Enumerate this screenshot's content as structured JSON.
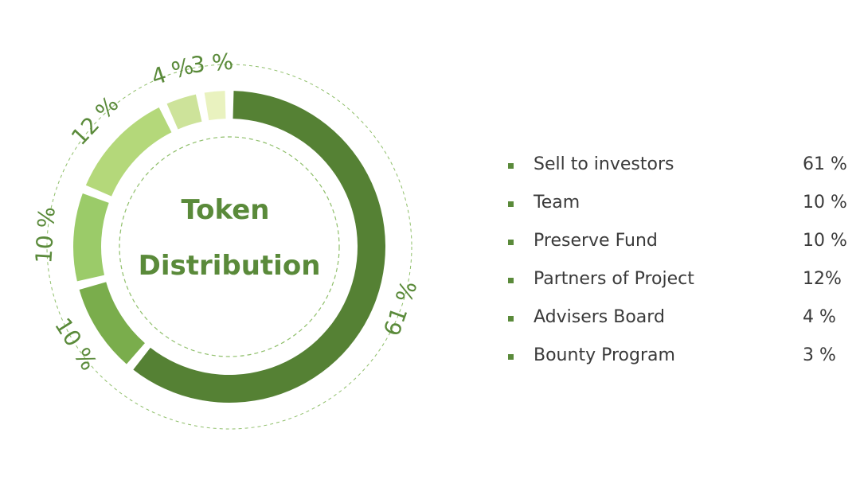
{
  "chart_data": {
    "type": "pie",
    "center_title_lines": [
      "Token",
      "Distribution"
    ],
    "slices": [
      {
        "label": "Sell to investors",
        "value": 61,
        "color": "#558134",
        "ring_label": "61 %"
      },
      {
        "label": "Team",
        "value": 10,
        "color": "#7aad4c",
        "ring_label": "10 %"
      },
      {
        "label": "Preserve Fund",
        "value": 10,
        "color": "#9bcb69",
        "ring_label": "10 %"
      },
      {
        "label": "Partners of Project",
        "value": 12,
        "color": "#b4d87a",
        "ring_label": "12 %"
      },
      {
        "label": "Advisers Board",
        "value": 4,
        "color": "#cde39a",
        "ring_label": "4 %"
      },
      {
        "label": "Bounty Program",
        "value": 3,
        "color": "#e9f2bf",
        "ring_label": "3 %"
      }
    ],
    "legend_placement": "right"
  },
  "legend": {
    "items": [
      {
        "label": "Sell to investors",
        "value": "61 %"
      },
      {
        "label": "Team",
        "value": "10 %"
      },
      {
        "label": "Preserve Fund",
        "value": "10 %"
      },
      {
        "label": "Partners of Project",
        "value": "12%"
      },
      {
        "label": "Advisers Board",
        "value": "4 %"
      },
      {
        "label": "Bounty Program",
        "value": "3 %"
      }
    ]
  },
  "colors": {
    "text_green": "#5a8a3a",
    "dashed_ring": "#8fbf6a",
    "legend_text": "#3a3a3a",
    "bullet": "#5a8a3a"
  }
}
